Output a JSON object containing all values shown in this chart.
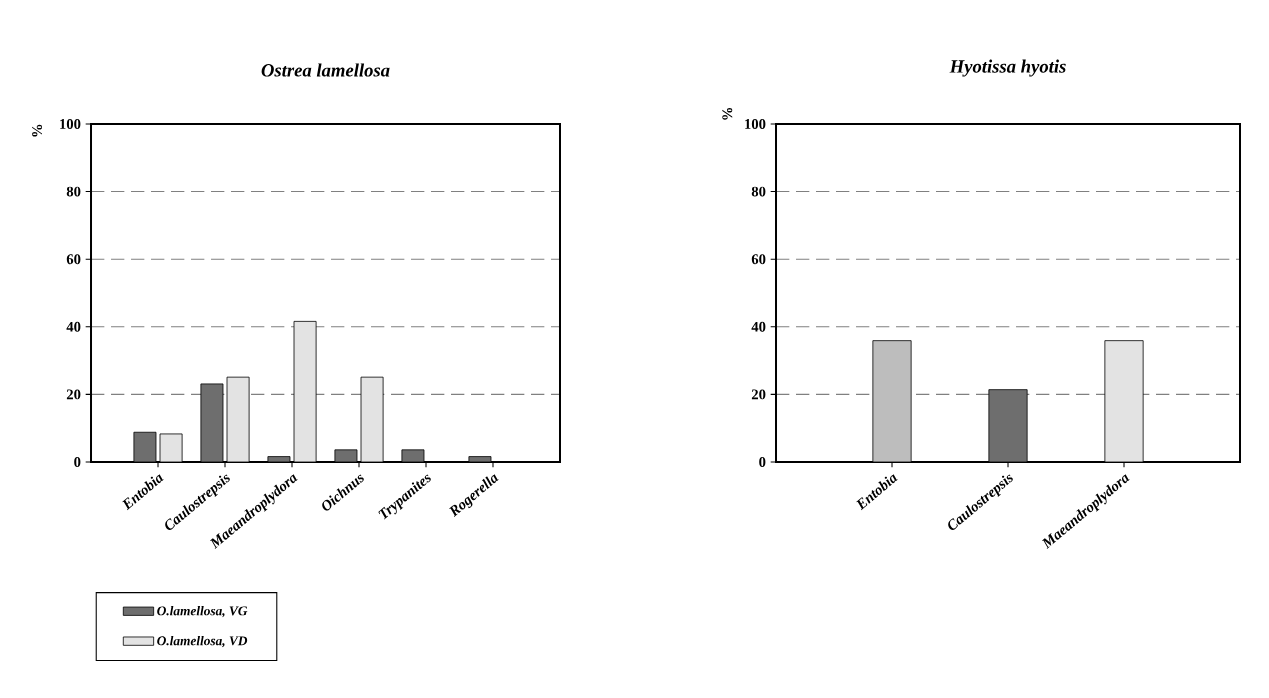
{
  "chart_data": [
    {
      "type": "bar",
      "title": "Ostrea lamellosa",
      "ylabel": "%",
      "categories": [
        "Entobia",
        "Caulostrepsis",
        "Maeandroplydora",
        "Oichnus",
        "Trypanites",
        "Rogerella"
      ],
      "series": [
        {
          "name": "O.lamellosa, VG",
          "color": "#6e6e6e",
          "values": [
            8.8,
            23.1,
            1.6,
            3.6,
            3.6,
            1.6
          ]
        },
        {
          "name": "O.lamellosa, VD",
          "color": "#e3e3e3",
          "values": [
            8.3,
            25.1,
            41.6,
            25.1,
            null,
            null
          ]
        }
      ],
      "ylim": [
        0,
        100
      ],
      "yticks": [
        0,
        20,
        40,
        60,
        80,
        100
      ],
      "grid": "y",
      "legend": "bottom left"
    },
    {
      "type": "bar",
      "title": "Hyotissa hyotis",
      "ylabel": "%",
      "categories": [
        "Entobia",
        "Caulostrepsis",
        "Maeandroplydora"
      ],
      "values": [
        35.9,
        21.4,
        35.9
      ],
      "colors": [
        "#bdbdbd",
        "#6e6e6e",
        "#e3e3e3"
      ],
      "ylim": [
        0,
        100
      ],
      "yticks": [
        0,
        20,
        40,
        60,
        80,
        100
      ],
      "grid": "y"
    }
  ]
}
